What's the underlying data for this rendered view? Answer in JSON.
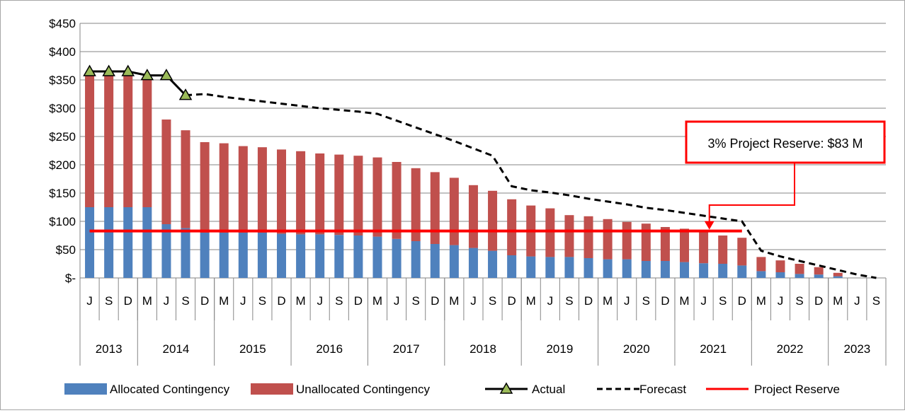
{
  "chart_data": {
    "type": "bar",
    "stacked": true,
    "months": [
      "J",
      "S",
      "D",
      "M",
      "J",
      "S",
      "D",
      "M",
      "J",
      "S",
      "D",
      "M",
      "J",
      "S",
      "D",
      "M",
      "J",
      "S",
      "D",
      "M",
      "J",
      "S",
      "D",
      "M",
      "J",
      "S",
      "D",
      "M",
      "J",
      "S",
      "D",
      "M",
      "J",
      "S",
      "D",
      "M",
      "J",
      "S",
      "D",
      "M",
      "J",
      "S"
    ],
    "years": [
      {
        "label": "2013",
        "span": 3
      },
      {
        "label": "2014",
        "span": 4
      },
      {
        "label": "2015",
        "span": 4
      },
      {
        "label": "2016",
        "span": 4
      },
      {
        "label": "2017",
        "span": 4
      },
      {
        "label": "2018",
        "span": 4
      },
      {
        "label": "2019",
        "span": 4
      },
      {
        "label": "2020",
        "span": 4
      },
      {
        "label": "2021",
        "span": 4
      },
      {
        "label": "2022",
        "span": 4
      },
      {
        "label": "2023",
        "span": 3
      }
    ],
    "y_ticks": [
      "$-",
      "$50",
      "$100",
      "$150",
      "$200",
      "$250",
      "$300",
      "$350",
      "$400",
      "$450"
    ],
    "ylim": [
      0,
      450
    ],
    "grid": true,
    "series": [
      {
        "name": "Allocated Contingency",
        "type": "bar",
        "color": "#4f81bd",
        "values": [
          125,
          125,
          125,
          125,
          95,
          88,
          80,
          80,
          80,
          80,
          78,
          77,
          77,
          76,
          75,
          73,
          69,
          65,
          60,
          58,
          53,
          48,
          40,
          38,
          37,
          37,
          35,
          33,
          33,
          30,
          30,
          28,
          26,
          25,
          22,
          12,
          10,
          7,
          6,
          3,
          0,
          0
        ]
      },
      {
        "name": "Unallocated Contingency",
        "type": "bar",
        "color": "#c0504d",
        "values": [
          235,
          235,
          235,
          230,
          185,
          173,
          160,
          158,
          153,
          151,
          149,
          147,
          143,
          142,
          141,
          140,
          136,
          129,
          127,
          119,
          111,
          106,
          99,
          90,
          86,
          74,
          74,
          71,
          66,
          66,
          60,
          59,
          57,
          50,
          49,
          25,
          21,
          18,
          13,
          6,
          0,
          0
        ]
      },
      {
        "name": "Actual",
        "type": "line",
        "color": "#000000",
        "marker_color": "#9bbb59",
        "values": [
          365,
          365,
          365,
          358,
          358,
          323
        ]
      },
      {
        "name": "Forecast",
        "type": "line",
        "dashed": true,
        "color": "#000000",
        "points": [
          {
            "x": 5,
            "y": 323
          },
          {
            "x": 6,
            "y": 325
          },
          {
            "x": 7,
            "y": 320
          },
          {
            "x": 8,
            "y": 316
          },
          {
            "x": 9,
            "y": 312
          },
          {
            "x": 10,
            "y": 308
          },
          {
            "x": 11,
            "y": 304
          },
          {
            "x": 12,
            "y": 300
          },
          {
            "x": 13,
            "y": 297
          },
          {
            "x": 14,
            "y": 294
          },
          {
            "x": 15,
            "y": 290
          },
          {
            "x": 16,
            "y": 278
          },
          {
            "x": 17,
            "y": 266
          },
          {
            "x": 18,
            "y": 254
          },
          {
            "x": 19,
            "y": 242
          },
          {
            "x": 20,
            "y": 229
          },
          {
            "x": 21,
            "y": 216
          },
          {
            "x": 22,
            "y": 162
          },
          {
            "x": 23,
            "y": 155
          },
          {
            "x": 24,
            "y": 151
          },
          {
            "x": 25,
            "y": 146
          },
          {
            "x": 26,
            "y": 140
          },
          {
            "x": 27,
            "y": 135
          },
          {
            "x": 28,
            "y": 130
          },
          {
            "x": 29,
            "y": 124
          },
          {
            "x": 30,
            "y": 120
          },
          {
            "x": 31,
            "y": 115
          },
          {
            "x": 32,
            "y": 110
          },
          {
            "x": 33,
            "y": 105
          },
          {
            "x": 34,
            "y": 100
          },
          {
            "x": 35,
            "y": 48
          },
          {
            "x": 36,
            "y": 38
          },
          {
            "x": 37,
            "y": 30
          },
          {
            "x": 38,
            "y": 22
          },
          {
            "x": 39,
            "y": 14
          },
          {
            "x": 40,
            "y": 6
          },
          {
            "x": 41,
            "y": 0
          }
        ]
      },
      {
        "name": "Project Reserve",
        "type": "line",
        "color": "#ff0000",
        "value": 83,
        "from_index": 0,
        "to_index": 34
      }
    ],
    "annotation": {
      "text": "3% Project Reserve: $83 M",
      "border_color": "#ff0000",
      "arrow_to_index": 32.3,
      "arrow_to_value": 83
    }
  }
}
